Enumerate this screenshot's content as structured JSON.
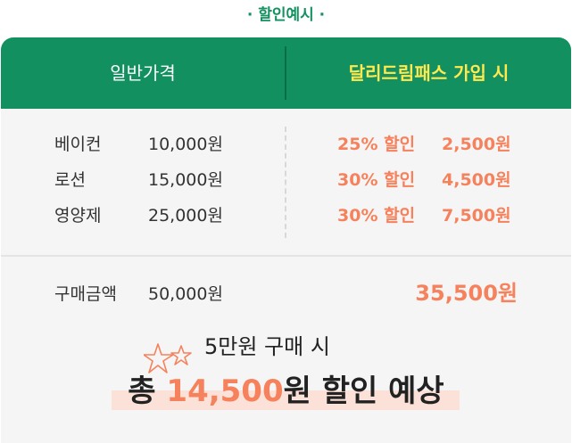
{
  "title": "· 할인예시 ·",
  "header": {
    "left": "일반가격",
    "right": "달리드림패스 가입 시"
  },
  "items": [
    {
      "name": "베이컨",
      "price": "10,000원",
      "discount": "25% 할인",
      "final": "2,500원"
    },
    {
      "name": "로션",
      "price": "15,000원",
      "discount": "30% 할인",
      "final": "4,500원"
    },
    {
      "name": "영양제",
      "price": "25,000원",
      "discount": "30% 할인",
      "final": "7,500원"
    }
  ],
  "total": {
    "label": "구매금액",
    "price": "50,000원",
    "final": "35,500원"
  },
  "summary": {
    "line1": "5만원 구매 시",
    "line2_prefix": "총 ",
    "line2_amount": "14,500",
    "line2_suffix": "원 할인 예상"
  },
  "colors": {
    "green": "#129060",
    "yellow": "#ffe94f",
    "orange": "#f5825c"
  },
  "icons": [
    "star-outline-icon"
  ]
}
